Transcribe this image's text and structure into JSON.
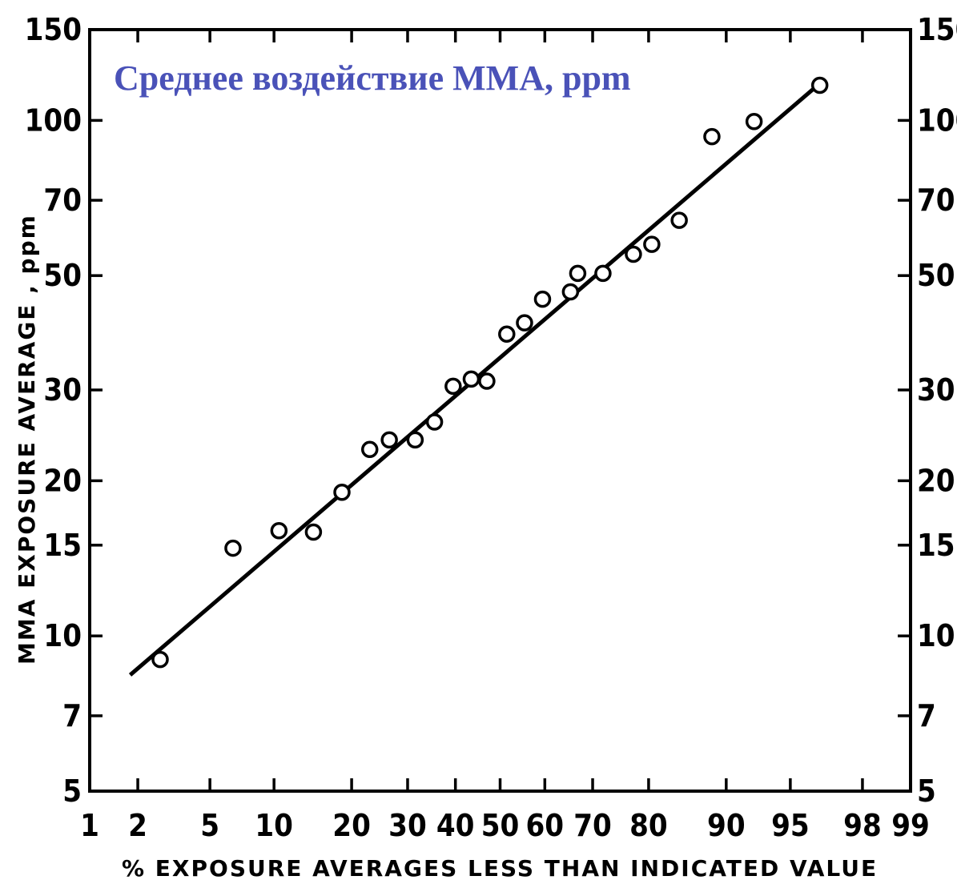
{
  "chart_data": {
    "type": "scatter",
    "title": "Среднее воздействие MMA, ppm",
    "xlabel": "% EXPOSURE AVERAGES LESS THAN INDICATED VALUE",
    "ylabel": "MMA EXPOSURE AVERAGE , ppm",
    "x_scale": "probability",
    "y_scale": "log",
    "xlim": [
      1,
      99
    ],
    "ylim": [
      5,
      150
    ],
    "x_ticks": [
      1,
      2,
      5,
      10,
      20,
      30,
      40,
      50,
      60,
      70,
      80,
      90,
      95,
      98,
      99
    ],
    "y_ticks": [
      5,
      7,
      10,
      15,
      20,
      30,
      50,
      70,
      100,
      150
    ],
    "grid": false,
    "points": [
      {
        "x": 2.7,
        "y": 9.0
      },
      {
        "x": 6.5,
        "y": 14.8
      },
      {
        "x": 10.5,
        "y": 16.0
      },
      {
        "x": 14.5,
        "y": 15.9
      },
      {
        "x": 18.5,
        "y": 19.0
      },
      {
        "x": 23.0,
        "y": 23.0
      },
      {
        "x": 26.5,
        "y": 24.0
      },
      {
        "x": 31.5,
        "y": 24.0
      },
      {
        "x": 35.5,
        "y": 26.0
      },
      {
        "x": 39.5,
        "y": 30.5
      },
      {
        "x": 43.5,
        "y": 31.5
      },
      {
        "x": 47.0,
        "y": 31.2
      },
      {
        "x": 51.5,
        "y": 38.5
      },
      {
        "x": 55.5,
        "y": 40.5
      },
      {
        "x": 59.5,
        "y": 45.0
      },
      {
        "x": 65.5,
        "y": 46.5
      },
      {
        "x": 67.0,
        "y": 50.5
      },
      {
        "x": 72.0,
        "y": 50.5
      },
      {
        "x": 77.5,
        "y": 55.0
      },
      {
        "x": 80.5,
        "y": 57.5
      },
      {
        "x": 84.5,
        "y": 64.0
      },
      {
        "x": 88.5,
        "y": 93.0
      },
      {
        "x": 92.5,
        "y": 99.5
      },
      {
        "x": 96.5,
        "y": 117.0
      }
    ],
    "fit_line": [
      {
        "x": 1.8,
        "y": 8.4
      },
      {
        "x": 96.2,
        "y": 115.0
      }
    ],
    "colors": {
      "title": "#4a52b8",
      "ink": "#000000"
    }
  }
}
